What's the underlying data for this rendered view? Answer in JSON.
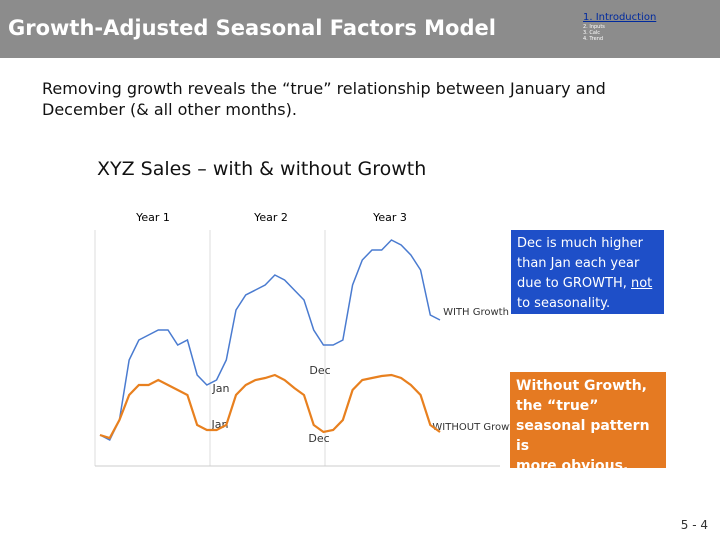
{
  "header": {
    "title": "Growth-Adjusted Seasonal Factors Model",
    "nav": [
      "1. Introduction",
      "2. Inputs",
      "3. Calc",
      "4. Trend"
    ]
  },
  "intro": [
    "Removing growth reveals the “true” relationship between January and",
    "December (& all other months)."
  ],
  "chart_data": {
    "type": "line",
    "title": "XYZ Sales – with & without Growth",
    "year_labels": [
      "Year 1",
      "Year 2",
      "Year 3"
    ],
    "ylim": [
      0,
      235
    ],
    "series": [
      {
        "name": "WITH Growth",
        "color": "#4a7bd0",
        "values": [
          30,
          25,
          45,
          105,
          125,
          130,
          135,
          135,
          120,
          125,
          90,
          80,
          85,
          105,
          155,
          170,
          175,
          180,
          190,
          185,
          175,
          165,
          135,
          120,
          120,
          125,
          180,
          205,
          215,
          215,
          225,
          220,
          210,
          195,
          150,
          145
        ]
      },
      {
        "name": "WITHOUT Growth",
        "color": "#e8801f",
        "values": [
          30,
          27,
          45,
          70,
          80,
          80,
          85,
          80,
          75,
          70,
          40,
          35,
          35,
          40,
          70,
          80,
          85,
          87,
          90,
          85,
          77,
          70,
          40,
          33,
          35,
          45,
          75,
          85,
          87,
          89,
          90,
          87,
          80,
          70,
          40,
          33
        ]
      }
    ],
    "annotations": [
      "Dec",
      "Jan",
      "Jan",
      "Dec"
    ]
  },
  "callouts": {
    "growth": [
      "Dec is much higher",
      "than Jan each year",
      "due to GROWTH, ",
      "not",
      "to seasonality."
    ],
    "seasonal": [
      "Without Growth,",
      "the “true”",
      "seasonal pattern is",
      "more obvious."
    ]
  },
  "footer": {
    "page": "5 - 4"
  }
}
